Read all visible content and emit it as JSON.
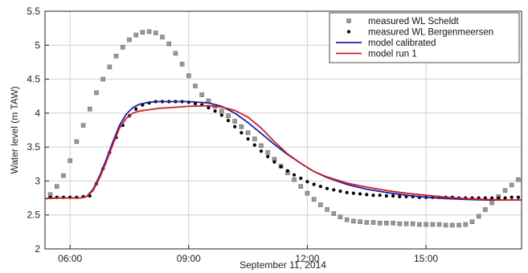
{
  "chart_data": {
    "type": "line",
    "title": "",
    "xlabel": "September 11, 2014",
    "ylabel": "Water level (m TAW)",
    "xlim": [
      "05:22",
      "17:25"
    ],
    "ylim": [
      2,
      5.5
    ],
    "x_ticks": [
      "06:00",
      "09:00",
      "12:00",
      "15:00"
    ],
    "y_ticks": [
      "2",
      "2.5",
      "3",
      "3.5",
      "4",
      "4.5",
      "5",
      "5.5"
    ],
    "grid": true,
    "legend_position": "top-right",
    "colors": {
      "scheldt": "#808080",
      "bergenmeersen": "#000000",
      "calibrated": "#1f1fb0",
      "run1": "#cc2020"
    },
    "series": [
      {
        "name": "measured WL Scheldt",
        "style": "square-markers",
        "x": [
          "05:30",
          "05:40",
          "05:50",
          "06:00",
          "06:10",
          "06:20",
          "06:30",
          "06:40",
          "06:50",
          "07:00",
          "07:10",
          "07:20",
          "07:30",
          "07:40",
          "07:50",
          "08:00",
          "08:10",
          "08:20",
          "08:30",
          "08:40",
          "08:50",
          "09:00",
          "09:10",
          "09:20",
          "09:30",
          "09:40",
          "09:50",
          "10:00",
          "10:10",
          "10:20",
          "10:30",
          "10:40",
          "10:50",
          "11:00",
          "11:10",
          "11:20",
          "11:30",
          "11:40",
          "11:50",
          "12:00",
          "12:10",
          "12:20",
          "12:30",
          "12:40",
          "12:50",
          "13:00",
          "13:10",
          "13:20",
          "13:30",
          "13:40",
          "13:50",
          "14:00",
          "14:10",
          "14:20",
          "14:30",
          "14:40",
          "14:50",
          "15:00",
          "15:10",
          "15:20",
          "15:30",
          "15:40",
          "15:50",
          "16:00",
          "16:10",
          "16:20",
          "16:30",
          "16:40",
          "16:50",
          "17:00",
          "17:10",
          "17:20"
        ],
        "y": [
          2.8,
          2.92,
          3.08,
          3.3,
          3.58,
          3.82,
          4.06,
          4.3,
          4.5,
          4.68,
          4.84,
          4.97,
          5.08,
          5.15,
          5.19,
          5.2,
          5.18,
          5.12,
          5.02,
          4.88,
          4.72,
          4.55,
          4.4,
          4.27,
          4.18,
          4.1,
          4.03,
          3.96,
          3.88,
          3.8,
          3.71,
          3.62,
          3.52,
          3.42,
          3.32,
          3.22,
          3.12,
          3.02,
          2.92,
          2.82,
          2.73,
          2.65,
          2.58,
          2.52,
          2.47,
          2.43,
          2.41,
          2.4,
          2.39,
          2.39,
          2.38,
          2.38,
          2.38,
          2.37,
          2.37,
          2.37,
          2.36,
          2.36,
          2.36,
          2.36,
          2.35,
          2.35,
          2.35,
          2.36,
          2.4,
          2.48,
          2.58,
          2.68,
          2.77,
          2.86,
          2.94,
          3.02
        ]
      },
      {
        "name": "measured WL Bergenmeersen",
        "style": "dot-markers",
        "x": [
          "05:30",
          "05:40",
          "05:50",
          "06:00",
          "06:10",
          "06:20",
          "06:30",
          "06:40",
          "06:50",
          "07:00",
          "07:10",
          "07:20",
          "07:30",
          "07:40",
          "07:50",
          "08:00",
          "08:10",
          "08:20",
          "08:30",
          "08:40",
          "08:50",
          "09:00",
          "09:10",
          "09:20",
          "09:30",
          "09:40",
          "09:50",
          "10:00",
          "10:10",
          "10:20",
          "10:30",
          "10:40",
          "10:50",
          "11:00",
          "11:10",
          "11:20",
          "11:30",
          "11:40",
          "11:50",
          "12:00",
          "12:10",
          "12:20",
          "12:30",
          "12:40",
          "12:50",
          "13:00",
          "13:10",
          "13:20",
          "13:30",
          "13:40",
          "13:50",
          "14:00",
          "14:10",
          "14:20",
          "14:30",
          "14:40",
          "14:50",
          "15:00",
          "15:10",
          "15:20",
          "15:30",
          "15:40",
          "15:50",
          "16:00",
          "16:10",
          "16:20",
          "16:30",
          "16:40",
          "16:50",
          "17:00",
          "17:10",
          "17:20"
        ],
        "y": [
          2.76,
          2.76,
          2.76,
          2.76,
          2.76,
          2.77,
          2.78,
          2.96,
          3.18,
          3.42,
          3.64,
          3.82,
          3.96,
          4.06,
          4.12,
          4.15,
          4.17,
          4.17,
          4.17,
          4.17,
          4.17,
          4.16,
          4.14,
          4.12,
          4.08,
          4.03,
          3.97,
          3.89,
          3.8,
          3.71,
          3.62,
          3.53,
          3.44,
          3.36,
          3.28,
          3.21,
          3.15,
          3.09,
          3.04,
          2.99,
          2.95,
          2.92,
          2.89,
          2.87,
          2.85,
          2.83,
          2.82,
          2.81,
          2.8,
          2.79,
          2.79,
          2.78,
          2.78,
          2.77,
          2.77,
          2.77,
          2.76,
          2.76,
          2.76,
          2.76,
          2.76,
          2.76,
          2.75,
          2.75,
          2.75,
          2.75,
          2.75,
          2.75,
          2.75,
          2.75,
          2.76,
          2.76
        ]
      },
      {
        "name": "model calibrated",
        "style": "line",
        "x": [
          "05:22",
          "05:40",
          "06:00",
          "06:15",
          "06:25",
          "06:35",
          "06:45",
          "06:55",
          "07:05",
          "07:15",
          "07:25",
          "07:35",
          "07:45",
          "08:00",
          "08:15",
          "08:30",
          "09:00",
          "09:30",
          "09:50",
          "10:10",
          "10:30",
          "10:50",
          "11:10",
          "11:30",
          "11:50",
          "12:10",
          "12:30",
          "13:00",
          "13:30",
          "14:00",
          "14:30",
          "15:00",
          "15:30",
          "16:00",
          "16:30",
          "17:00",
          "17:25"
        ],
        "y": [
          2.74,
          2.75,
          2.75,
          2.75,
          2.77,
          2.88,
          3.08,
          3.32,
          3.58,
          3.82,
          3.98,
          4.08,
          4.13,
          4.16,
          4.17,
          4.17,
          4.17,
          4.15,
          4.1,
          4.0,
          3.86,
          3.7,
          3.54,
          3.39,
          3.26,
          3.14,
          3.05,
          2.95,
          2.88,
          2.83,
          2.79,
          2.76,
          2.74,
          2.73,
          2.72,
          2.72,
          2.72
        ]
      },
      {
        "name": "model run 1",
        "style": "line",
        "x": [
          "05:22",
          "05:40",
          "06:00",
          "06:15",
          "06:25",
          "06:35",
          "06:45",
          "06:55",
          "07:05",
          "07:15",
          "07:25",
          "07:35",
          "07:45",
          "08:00",
          "08:15",
          "08:30",
          "09:00",
          "09:30",
          "09:50",
          "10:10",
          "10:30",
          "10:50",
          "11:10",
          "11:30",
          "11:50",
          "12:10",
          "12:30",
          "13:00",
          "13:30",
          "14:00",
          "14:30",
          "15:00",
          "15:30",
          "16:00",
          "16:30",
          "17:00",
          "17:25"
        ],
        "y": [
          2.74,
          2.75,
          2.75,
          2.75,
          2.77,
          2.86,
          3.05,
          3.28,
          3.54,
          3.78,
          3.92,
          4.0,
          4.03,
          4.05,
          4.07,
          4.08,
          4.1,
          4.11,
          4.09,
          4.04,
          3.94,
          3.78,
          3.58,
          3.4,
          3.26,
          3.14,
          3.06,
          2.97,
          2.91,
          2.86,
          2.82,
          2.79,
          2.76,
          2.74,
          2.73,
          2.72,
          2.72
        ]
      }
    ]
  }
}
